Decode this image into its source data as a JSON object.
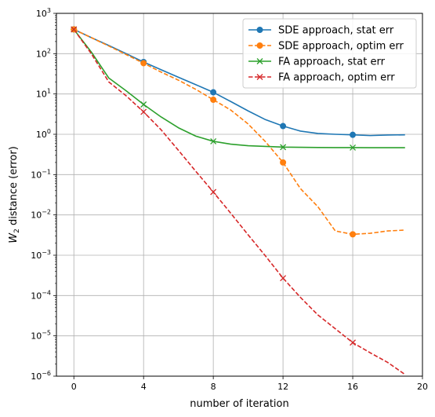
{
  "chart_data": {
    "type": "line",
    "xlabel": "number of iteration",
    "ylabel_base": "W",
    "ylabel_sub": "2",
    "ylabel_rest": " distance (error)",
    "xlim": [
      -1,
      20
    ],
    "ylim_exp": [
      -6,
      3
    ],
    "y_scale": "log",
    "grid": true,
    "legend_position": "top-right",
    "x_ticks": [
      0,
      4,
      8,
      12,
      16,
      20
    ],
    "y_tick_exponents": [
      -6,
      -5,
      -4,
      -3,
      -2,
      -1,
      0,
      1,
      2,
      3
    ],
    "series": [
      {
        "name": "SDE approach, stat err",
        "color": "#1f77b4",
        "dash": "solid",
        "marker": "circle",
        "marker_every": 4,
        "x": [
          0,
          1,
          2,
          3,
          4,
          5,
          6,
          7,
          8,
          9,
          10,
          11,
          12,
          13,
          14,
          15,
          16,
          17,
          18,
          19
        ],
        "y": [
          400,
          250,
          160,
          100,
          62,
          40,
          26,
          17,
          11,
          6.5,
          3.8,
          2.3,
          1.6,
          1.2,
          1.05,
          1.0,
          0.97,
          0.93,
          0.96,
          0.97
        ]
      },
      {
        "name": "SDE approach, optim err",
        "color": "#ff7f0e",
        "dash": "dashed",
        "marker": "circle",
        "marker_every": 4,
        "x": [
          0,
          1,
          2,
          3,
          4,
          5,
          6,
          7,
          8,
          9,
          10,
          11,
          12,
          13,
          14,
          15,
          16,
          17,
          18,
          19
        ],
        "y": [
          400,
          250,
          155,
          95,
          58,
          35,
          22,
          13,
          7.2,
          4.0,
          1.8,
          0.65,
          0.2,
          0.045,
          0.016,
          0.004,
          0.0033,
          0.0035,
          0.004,
          0.0042
        ]
      },
      {
        "name": "FA approach, stat err",
        "color": "#2ca02c",
        "dash": "solid",
        "marker": "x",
        "marker_every": 4,
        "x": [
          0,
          1,
          2,
          3,
          4,
          5,
          6,
          7,
          8,
          9,
          10,
          11,
          12,
          13,
          14,
          15,
          16,
          17,
          18,
          19
        ],
        "y": [
          400,
          110,
          25,
          12,
          5.5,
          2.7,
          1.45,
          0.9,
          0.67,
          0.57,
          0.52,
          0.5,
          0.48,
          0.475,
          0.47,
          0.468,
          0.467,
          0.466,
          0.465,
          0.465
        ]
      },
      {
        "name": "FA approach, optim err",
        "color": "#d62728",
        "dash": "dashed",
        "marker": "x",
        "marker_every": 4,
        "x": [
          0,
          1,
          2,
          3,
          4,
          5,
          6,
          7,
          8,
          9,
          10,
          11,
          12,
          13,
          14,
          15,
          16,
          17,
          18,
          19
        ],
        "y": [
          400,
          100,
          20,
          9,
          3.6,
          1.3,
          0.4,
          0.12,
          0.037,
          0.011,
          0.0032,
          0.00095,
          0.00027,
          9e-05,
          3.3e-05,
          1.5e-05,
          6.8e-06,
          3.8e-06,
          2.2e-06,
          1.1e-06
        ]
      }
    ]
  }
}
